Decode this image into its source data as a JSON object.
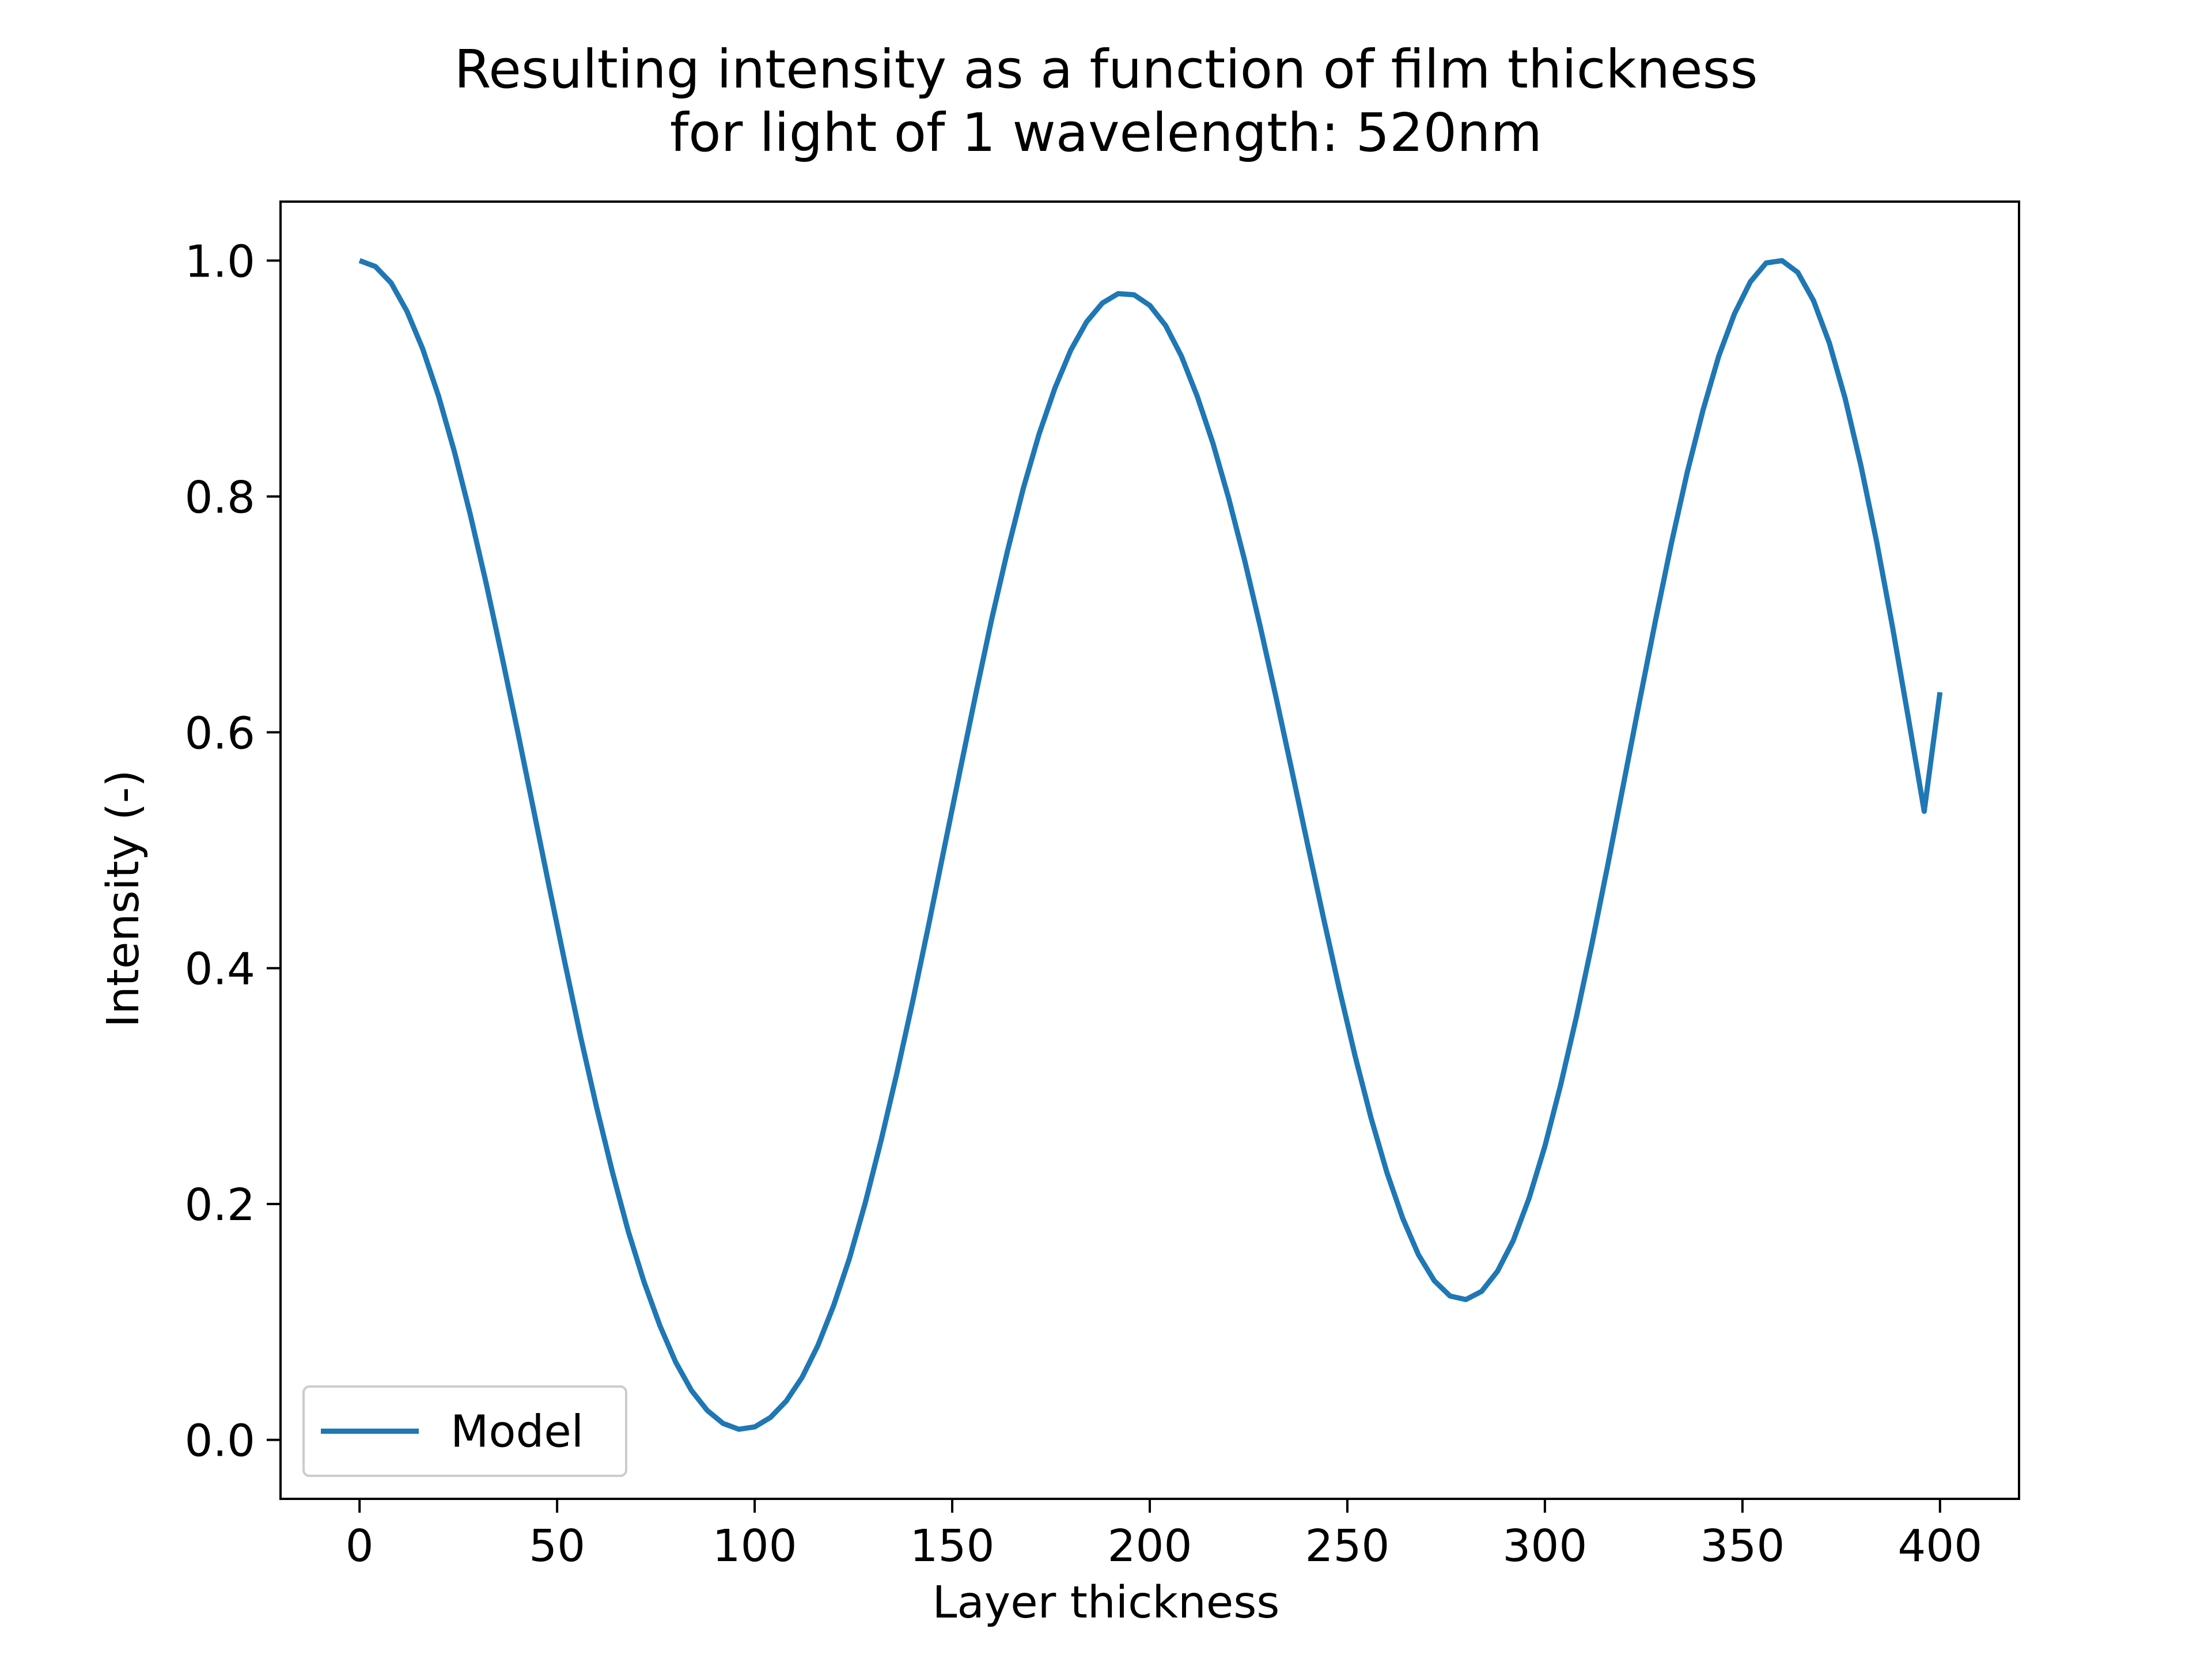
{
  "chart_data": {
    "type": "line",
    "title": "Resulting intensity as a function of film thickness",
    "subtitle": "for light of 1 wavelength: 520nm",
    "xlabel": "Layer thickness",
    "ylabel": "Intensity (-)",
    "xlim": [
      -20,
      420
    ],
    "ylim": [
      -0.05,
      1.05
    ],
    "xticks": [
      0,
      50,
      100,
      150,
      200,
      250,
      300,
      350,
      400
    ],
    "xtick_labels": [
      "0",
      "50",
      "100",
      "150",
      "200",
      "250",
      "300",
      "350",
      "400"
    ],
    "yticks": [
      0.0,
      0.2,
      0.4,
      0.6,
      0.8,
      1.0
    ],
    "ytick_labels": [
      "0.0",
      "0.2",
      "0.4",
      "0.6",
      "0.8",
      "1.0"
    ],
    "grid": false,
    "legend": {
      "placement": "lower-left",
      "entries": [
        "Model"
      ]
    },
    "series": [
      {
        "name": "Model",
        "color": "#1f77b4",
        "x": [
          0,
          4,
          8,
          12,
          16,
          20,
          24,
          28,
          32,
          36,
          40,
          44,
          48,
          52,
          56,
          60,
          64,
          68,
          72,
          76,
          80,
          84,
          88,
          92,
          96,
          100,
          104,
          108,
          112,
          116,
          120,
          124,
          128,
          132,
          136,
          140,
          144,
          148,
          152,
          156,
          160,
          164,
          168,
          172,
          176,
          180,
          184,
          188,
          192,
          196,
          200,
          204,
          208,
          212,
          216,
          220,
          224,
          228,
          232,
          236,
          240,
          244,
          248,
          252,
          256,
          260,
          264,
          268,
          272,
          276,
          280,
          284,
          288,
          292,
          296,
          300,
          304,
          308,
          312,
          316,
          320,
          324,
          328,
          332,
          336,
          340,
          344,
          348,
          352,
          356,
          360,
          364,
          368,
          372,
          376,
          380,
          384,
          388,
          392,
          396,
          400
        ],
        "y": [
          1.0,
          0.995,
          0.981,
          0.957,
          0.925,
          0.885,
          0.838,
          0.785,
          0.727,
          0.665,
          0.601,
          0.535,
          0.469,
          0.404,
          0.341,
          0.282,
          0.227,
          0.177,
          0.134,
          0.097,
          0.066,
          0.042,
          0.025,
          0.014,
          0.009,
          0.011,
          0.019,
          0.033,
          0.053,
          0.08,
          0.114,
          0.154,
          0.201,
          0.254,
          0.311,
          0.372,
          0.436,
          0.502,
          0.568,
          0.633,
          0.696,
          0.754,
          0.807,
          0.853,
          0.892,
          0.924,
          0.948,
          0.964,
          0.972,
          0.971,
          0.962,
          0.945,
          0.919,
          0.885,
          0.845,
          0.798,
          0.746,
          0.689,
          0.629,
          0.567,
          0.504,
          0.442,
          0.382,
          0.325,
          0.273,
          0.227,
          0.188,
          0.157,
          0.135,
          0.122,
          0.119,
          0.126,
          0.143,
          0.169,
          0.205,
          0.249,
          0.301,
          0.359,
          0.422,
          0.489,
          0.558,
          0.627,
          0.695,
          0.76,
          0.82,
          0.873,
          0.919,
          0.955,
          0.982,
          0.998,
          1.0,
          0.99,
          0.966,
          0.93,
          0.883,
          0.826,
          0.761,
          0.689,
          0.612,
          0.533,
          0.634
        ]
      }
    ]
  }
}
